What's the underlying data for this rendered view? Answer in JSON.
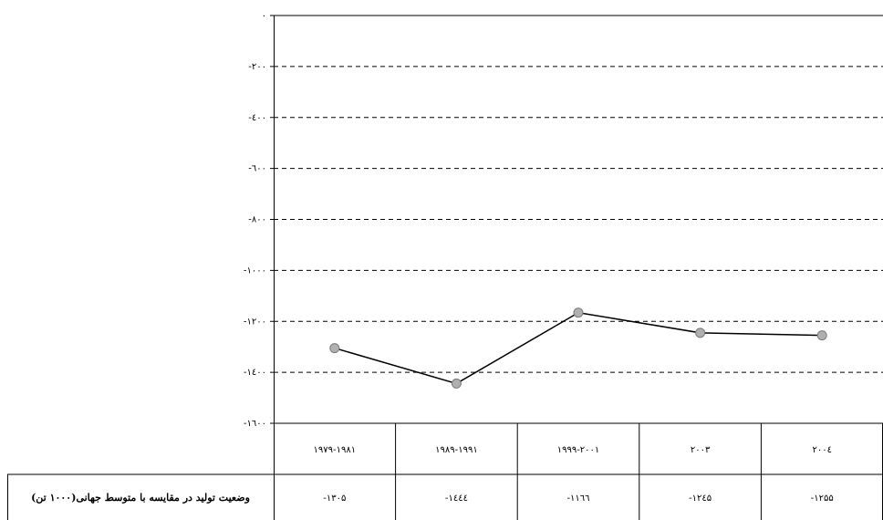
{
  "chart_data": {
    "type": "line",
    "categories": [
      "۱۹۷۹-۱۹۸۱",
      "۱۹۸۹-۱۹۹۱",
      "۱۹۹۹-۲۰۰۱",
      "۲۰۰۳",
      "۲۰۰٤"
    ],
    "series": [
      {
        "name": "وضعیت تولید در مقایسه با متوسط جهانی(۱۰۰۰ تن)",
        "color": "#000000",
        "values": [
          -1305,
          -1444,
          -1166,
          -1245,
          -1255
        ],
        "value_labels": [
          "-۱۳۰۵",
          "-۱٤٤٤",
          "-۱۱٦٦",
          "-۱۲٤۵",
          "-۱۲۵۵"
        ]
      }
    ],
    "ylim": [
      -1600,
      0
    ],
    "yticks": [
      {
        "value": 0,
        "label": "۰"
      },
      {
        "value": -200,
        "label": "-۲۰۰"
      },
      {
        "value": -400,
        "label": "-٤۰۰"
      },
      {
        "value": -600,
        "label": "-٦۰۰"
      },
      {
        "value": -800,
        "label": "-۸۰۰"
      },
      {
        "value": -1000,
        "label": "-۱۰۰۰"
      },
      {
        "value": -1200,
        "label": "-۱۲۰۰"
      },
      {
        "value": -1400,
        "label": "-۱٤۰۰"
      },
      {
        "value": -1600,
        "label": "-۱٦۰۰"
      }
    ],
    "grid": true
  }
}
